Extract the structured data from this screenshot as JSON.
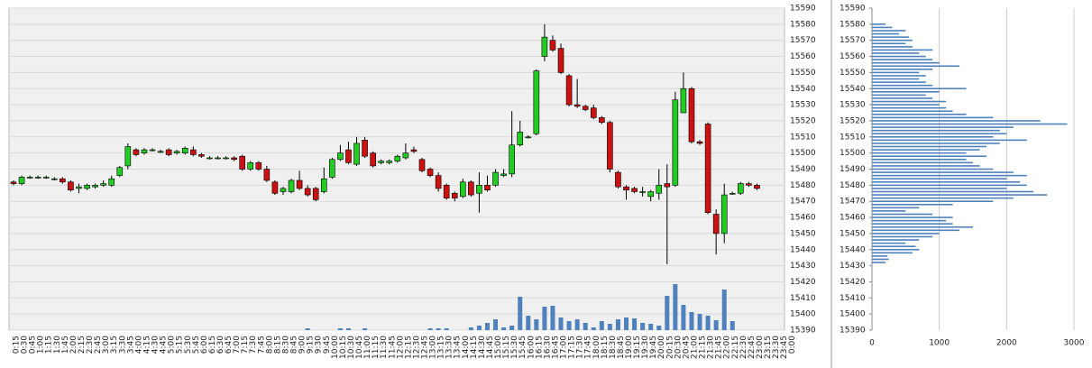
{
  "chart_data": [
    {
      "type": "candlestick",
      "categories": [
        "0:15",
        "0:30",
        "0:45",
        "1:00",
        "1:15",
        "1:30",
        "1:45",
        "2:00",
        "2:15",
        "2:30",
        "2:45",
        "3:00",
        "3:15",
        "3:30",
        "3:45",
        "4:00",
        "4:15",
        "4:30",
        "4:45",
        "5:00",
        "5:15",
        "5:30",
        "5:45",
        "6:00",
        "6:15",
        "6:30",
        "6:45",
        "7:00",
        "7:15",
        "7:30",
        "7:45",
        "8:00",
        "8:15",
        "8:30",
        "8:45",
        "9:00",
        "9:15",
        "9:30",
        "9:45",
        "10:00",
        "10:15",
        "10:30",
        "10:45",
        "11:00",
        "11:15",
        "11:30",
        "11:45",
        "12:00",
        "12:15",
        "12:30",
        "12:45",
        "13:00",
        "13:15",
        "13:30",
        "13:45",
        "14:00",
        "14:15",
        "14:30",
        "14:45",
        "15:00",
        "15:15",
        "15:30",
        "15:45",
        "16:00",
        "16:15",
        "16:30",
        "16:45",
        "17:00",
        "17:15",
        "17:30",
        "17:45",
        "18:00",
        "18:15",
        "18:30",
        "18:45",
        "19:00",
        "19:15",
        "19:30",
        "19:45",
        "20:00",
        "20:15",
        "20:30",
        "20:45",
        "21:00",
        "21:15",
        "21:30",
        "21:45",
        "22:00",
        "22:15",
        "22:30",
        "22:45",
        "23:00",
        "23:15",
        "23:30",
        "23:45",
        "0:00"
      ],
      "open": [
        15482,
        15481,
        15485,
        15485,
        15485,
        15484,
        15484,
        15482,
        15478,
        15478,
        15479,
        15480,
        15480,
        15486,
        15492,
        15502,
        15500,
        15502,
        15501,
        15502,
        15500,
        15500,
        15502,
        15499,
        15497,
        15497,
        15497,
        15497,
        15498,
        15490,
        15494,
        15490,
        15482,
        15476,
        15476,
        15483,
        15478,
        15478,
        15476,
        15485,
        15496,
        15502,
        15493,
        15508,
        15500,
        15494,
        15494,
        15495,
        15497,
        15502,
        15496,
        15490,
        15486,
        15480,
        15475,
        15473,
        15482,
        15475,
        15480,
        15480,
        15486,
        15487,
        15505,
        15510,
        15512,
        15560,
        15570,
        15565,
        15548,
        15530,
        15529,
        15528,
        15522,
        15519,
        15488,
        15479,
        15478,
        15476,
        15473,
        15475,
        15481,
        15480,
        15525,
        15540,
        15507,
        15518,
        15462,
        15450,
        15475,
        15475,
        15481,
        15480,
        null,
        null,
        null,
        null
      ],
      "close": [
        15481,
        15485,
        15485,
        15485,
        15485,
        15484,
        15482,
        15477,
        15479,
        15480,
        15480,
        15481,
        15484,
        15491,
        15504,
        15499,
        15502,
        15502,
        15501,
        15499,
        15501,
        15503,
        15499,
        15498,
        15497,
        15497,
        15497,
        15496,
        15490,
        15494,
        15490,
        15483,
        15475,
        15478,
        15483,
        15478,
        15474,
        15471,
        15484,
        15496,
        15500,
        15494,
        15506,
        15498,
        15492,
        15495,
        15495,
        15498,
        15500,
        15501,
        15489,
        15486,
        15478,
        15472,
        15472,
        15482,
        15474,
        15480,
        15477,
        15488,
        15487,
        15505,
        15513,
        15510,
        15551,
        15572,
        15564,
        15550,
        15530,
        15529,
        15527,
        15522,
        15519,
        15490,
        15479,
        15477,
        15476,
        15476,
        15476,
        15480,
        15479,
        15533,
        15540,
        15507,
        15506,
        15463,
        15450,
        15474,
        15475,
        15481,
        15480,
        15478,
        null,
        null,
        null,
        null
      ],
      "high": [
        15483,
        15486,
        15486,
        15486,
        15486,
        15485,
        15485,
        15483,
        15481,
        15481,
        15481,
        15483,
        15486,
        15492,
        15506,
        15503,
        15503,
        15503,
        15502,
        15503,
        15502,
        15504,
        15504,
        15500,
        15498,
        15498,
        15498,
        15498,
        15499,
        15495,
        15495,
        15492,
        15483,
        15479,
        15484,
        15489,
        15480,
        15479,
        15491,
        15497,
        15505,
        15507,
        15510,
        15510,
        15501,
        15496,
        15496,
        15499,
        15506,
        15504,
        15497,
        15491,
        15488,
        15481,
        15476,
        15484,
        15483,
        15488,
        15486,
        15490,
        15490,
        15526,
        15520,
        15511,
        15552,
        15580,
        15573,
        15568,
        15549,
        15546,
        15530,
        15530,
        15523,
        15520,
        15489,
        15480,
        15479,
        15479,
        15477,
        15490,
        15493,
        15538,
        15550,
        15541,
        15508,
        15519,
        15465,
        15481,
        15476,
        15482,
        15482,
        15481,
        null,
        null,
        null,
        null
      ],
      "low": [
        15480,
        15480,
        15484,
        15484,
        15484,
        15483,
        15481,
        15476,
        15475,
        15477,
        15478,
        15479,
        15479,
        15485,
        15490,
        15498,
        15499,
        15501,
        15500,
        15498,
        15499,
        15499,
        15498,
        15497,
        15496,
        15496,
        15496,
        15495,
        15489,
        15489,
        15489,
        15482,
        15474,
        15474,
        15475,
        15477,
        15473,
        15470,
        15475,
        15484,
        15495,
        15493,
        15492,
        15497,
        15491,
        15493,
        15493,
        15494,
        15496,
        15500,
        15488,
        15485,
        15476,
        15471,
        15470,
        15472,
        15473,
        15463,
        15476,
        15479,
        15485,
        15485,
        15504,
        15509,
        15511,
        15557,
        15563,
        15549,
        15529,
        15528,
        15526,
        15521,
        15518,
        15488,
        15478,
        15471,
        15475,
        15473,
        15470,
        15471,
        15431,
        15479,
        15526,
        15506,
        15505,
        15462,
        15437,
        15444,
        15474,
        15474,
        15479,
        15477,
        null,
        null,
        null,
        null
      ],
      "volume": [
        0,
        0,
        0,
        0,
        0,
        0,
        0,
        0,
        0,
        0,
        0,
        0,
        0,
        0,
        0,
        0,
        0,
        0,
        0,
        0,
        0,
        0,
        0,
        0,
        0,
        0,
        0,
        0,
        0,
        0,
        0,
        0,
        0,
        0,
        0,
        0,
        2,
        0,
        0,
        0,
        2,
        2,
        0,
        2,
        0,
        0,
        0,
        0,
        0,
        0,
        0,
        2,
        2,
        2,
        0,
        0,
        3,
        5,
        8,
        12,
        3,
        5,
        37,
        16,
        12,
        26,
        27,
        14,
        10,
        12,
        8,
        3,
        10,
        7,
        12,
        14,
        13,
        8,
        7,
        5,
        38,
        51,
        28,
        20,
        18,
        16,
        11,
        45,
        10,
        0,
        0,
        0,
        0,
        0,
        0,
        0
      ],
      "up_color": "#22cc22",
      "down_color": "#cc1111",
      "volume_color": "#4f81bd",
      "ylim": [
        15390,
        15590
      ],
      "yticks": [
        15390,
        15400,
        15410,
        15420,
        15430,
        15440,
        15450,
        15460,
        15470,
        15480,
        15490,
        15500,
        15510,
        15520,
        15530,
        15540,
        15550,
        15560,
        15570,
        15580,
        15590
      ],
      "grid": true
    },
    {
      "type": "bar",
      "orientation": "horizontal",
      "y": [
        15432,
        15434,
        15436,
        15438,
        15440,
        15442,
        15444,
        15446,
        15448,
        15450,
        15452,
        15454,
        15456,
        15458,
        15460,
        15462,
        15464,
        15466,
        15468,
        15470,
        15472,
        15474,
        15476,
        15478,
        15480,
        15482,
        15484,
        15486,
        15488,
        15490,
        15492,
        15494,
        15496,
        15498,
        15500,
        15502,
        15504,
        15506,
        15508,
        15510,
        15512,
        15514,
        15516,
        15518,
        15520,
        15522,
        15524,
        15526,
        15528,
        15530,
        15532,
        15534,
        15536,
        15538,
        15540,
        15542,
        15544,
        15546,
        15548,
        15550,
        15552,
        15554,
        15556,
        15558,
        15560,
        15562,
        15564,
        15566,
        15568,
        15570,
        15572,
        15574,
        15576,
        15578,
        15580
      ],
      "values": [
        200,
        250,
        230,
        600,
        700,
        650,
        500,
        700,
        900,
        1000,
        1300,
        1500,
        1200,
        1100,
        1200,
        900,
        500,
        700,
        1200,
        1800,
        2100,
        2600,
        2400,
        2000,
        2300,
        2200,
        2000,
        2300,
        2100,
        1800,
        1600,
        1500,
        1400,
        1700,
        1400,
        1600,
        1700,
        1900,
        2300,
        1800,
        2000,
        1900,
        2100,
        2900,
        2500,
        1800,
        1400,
        1200,
        1100,
        1000,
        1100,
        900,
        800,
        1000,
        1400,
        900,
        800,
        700,
        800,
        700,
        900,
        1300,
        1000,
        900,
        800,
        700,
        900,
        600,
        500,
        600,
        550,
        400,
        500,
        300,
        200
      ],
      "color": "#4f81bd",
      "xlim": [
        0,
        3000
      ],
      "xticks": [
        0,
        1000,
        2000,
        3000
      ],
      "ylim": [
        15390,
        15590
      ],
      "yticks": [
        15390,
        15400,
        15410,
        15420,
        15430,
        15440,
        15450,
        15460,
        15470,
        15480,
        15490,
        15500,
        15510,
        15520,
        15530,
        15540,
        15550,
        15560,
        15570,
        15580,
        15590
      ],
      "grid": true
    }
  ]
}
